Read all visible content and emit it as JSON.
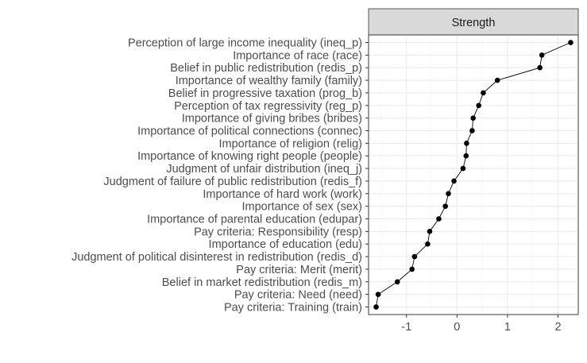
{
  "chart_data": {
    "type": "line",
    "facet_label": "Strength",
    "categories": [
      "Perception of large income inequality (ineq_p)",
      "Importance of race (race)",
      "Belief in public redistribution (redis_p)",
      "Importance of wealthy family (family)",
      "Belief in progressive taxation (prog_b)",
      "Perception of tax regressivity (reg_p)",
      "Importance of giving bribes (bribes)",
      "Importance of political connections (connec)",
      "Importance of religion (relig)",
      "Importance of knowing right people (people)",
      "Judgment of unfair distribution (ineq_j)",
      "Judgment of failure of public redistribution (redis_f)",
      "Importance of hard work (work)",
      "Importance of sex (sex)",
      "Importance of parental education (edupar)",
      "Pay criteria: Responsibility (resp)",
      "Importance of education (edu)",
      "Judgment of political disinterest in redistribution (redis_d)",
      "Pay criteria: Merit (merit)",
      "Belief in market redistribution (redis_m)",
      "Pay criteria: Need (need)",
      "Pay criteria: Training (train)"
    ],
    "values": [
      2.25,
      1.68,
      1.64,
      0.8,
      0.52,
      0.43,
      0.32,
      0.3,
      0.19,
      0.18,
      0.12,
      -0.06,
      -0.17,
      -0.23,
      -0.36,
      -0.54,
      -0.58,
      -0.84,
      -0.89,
      -1.18,
      -1.56,
      -1.6
    ],
    "xlim": [
      -1.75,
      2.4
    ],
    "xticks": [
      -1,
      0,
      1,
      2
    ],
    "xtick_labels": [
      "-1",
      "0",
      "1",
      "2"
    ],
    "grid": true,
    "xlabel": "",
    "ylabel": ""
  }
}
